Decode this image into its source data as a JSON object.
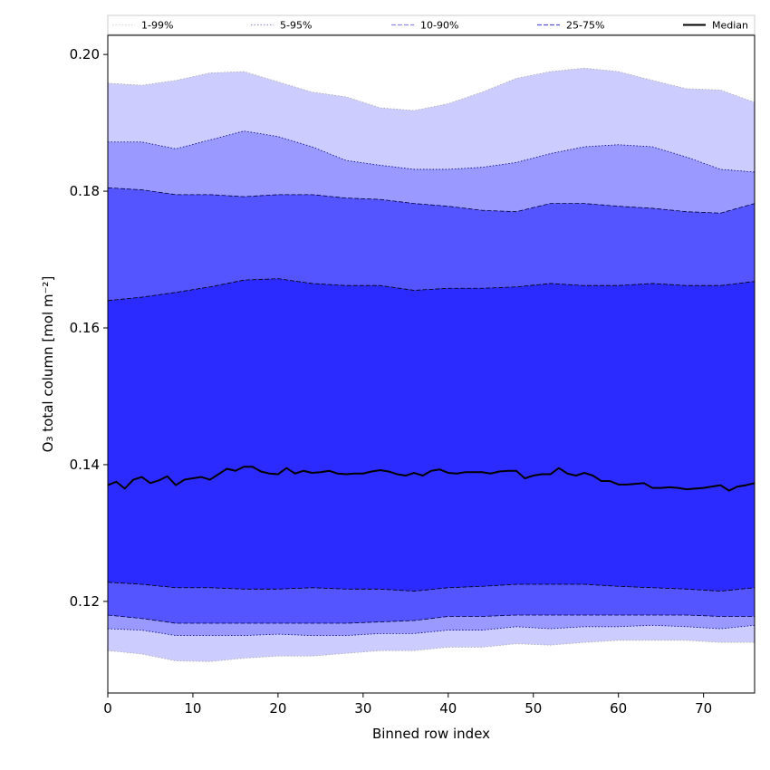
{
  "chart_data": {
    "type": "area",
    "title": "",
    "xlabel": "Binned row index",
    "ylabel": "O₃ total column [mol m⁻²]",
    "xlim": [
      0,
      76
    ],
    "ylim": [
      0.1066,
      0.2028
    ],
    "xticks": [
      0,
      10,
      20,
      30,
      40,
      50,
      60,
      70
    ],
    "yticks": [
      0.12,
      0.14,
      0.16,
      0.18,
      0.2
    ],
    "ytick_labels": [
      "0.12",
      "0.14",
      "0.16",
      "0.18",
      "0.20"
    ],
    "grid": false,
    "legend_position": "top",
    "x": [
      0,
      4,
      8,
      12,
      16,
      20,
      24,
      28,
      32,
      36,
      40,
      44,
      48,
      52,
      56,
      60,
      64,
      68,
      72,
      76
    ],
    "bands": [
      {
        "name": "1-99%",
        "fill": "#ccccff",
        "line_style": "dotted",
        "line_color": "#aaaaaa",
        "lower": [
          0.1128,
          0.1123,
          0.1113,
          0.1112,
          0.1117,
          0.112,
          0.112,
          0.1124,
          0.1128,
          0.1128,
          0.1133,
          0.1133,
          0.1138,
          0.1136,
          0.114,
          0.1143,
          0.1143,
          0.1143,
          0.114,
          0.114
        ],
        "upper": [
          0.1958,
          0.1955,
          0.1962,
          0.1973,
          0.1975,
          0.196,
          0.1945,
          0.1938,
          0.1922,
          0.1918,
          0.1928,
          0.1945,
          0.1965,
          0.1975,
          0.198,
          0.1975,
          0.1962,
          0.195,
          0.1948,
          0.193
        ]
      },
      {
        "name": "5-95%",
        "fill": "#9999ff",
        "line_style": "dotted",
        "line_color": "#000080",
        "lower": [
          0.116,
          0.1158,
          0.115,
          0.115,
          0.115,
          0.1152,
          0.115,
          0.115,
          0.1153,
          0.1153,
          0.1158,
          0.1158,
          0.1163,
          0.116,
          0.1163,
          0.1163,
          0.1165,
          0.1163,
          0.116,
          0.1165
        ],
        "upper": [
          0.1872,
          0.1872,
          0.1862,
          0.1875,
          0.1888,
          0.188,
          0.1865,
          0.1845,
          0.1838,
          0.1832,
          0.1832,
          0.1835,
          0.1842,
          0.1855,
          0.1865,
          0.1868,
          0.1865,
          0.185,
          0.1832,
          0.1828
        ]
      },
      {
        "name": "10-90%",
        "fill": "#5555ff",
        "line_style": "dashed",
        "line_color": "#000040",
        "lower": [
          0.118,
          0.1175,
          0.1168,
          0.1168,
          0.1168,
          0.1168,
          0.1168,
          0.1168,
          0.117,
          0.1172,
          0.1178,
          0.1178,
          0.118,
          0.118,
          0.118,
          0.118,
          0.118,
          0.118,
          0.1178,
          0.1178
        ],
        "upper": [
          0.1805,
          0.1802,
          0.1795,
          0.1795,
          0.1792,
          0.1795,
          0.1795,
          0.179,
          0.1788,
          0.1782,
          0.1778,
          0.1772,
          0.177,
          0.1782,
          0.1782,
          0.1778,
          0.1775,
          0.177,
          0.1768,
          0.1782
        ]
      },
      {
        "name": "25-75%",
        "fill": "#2b2bff",
        "line_style": "dashed",
        "line_color": "#000000",
        "lower": [
          0.1228,
          0.1225,
          0.122,
          0.122,
          0.1218,
          0.1218,
          0.122,
          0.1218,
          0.1218,
          0.1215,
          0.122,
          0.1222,
          0.1225,
          0.1225,
          0.1225,
          0.1222,
          0.122,
          0.1218,
          0.1215,
          0.122
        ],
        "upper": [
          0.164,
          0.1645,
          0.1652,
          0.166,
          0.167,
          0.1672,
          0.1665,
          0.1662,
          0.1662,
          0.1655,
          0.1658,
          0.1658,
          0.166,
          0.1665,
          0.1662,
          0.1662,
          0.1665,
          0.1662,
          0.1662,
          0.1668
        ]
      }
    ],
    "series": [
      {
        "name": "Median",
        "color": "#000000",
        "x": [
          0,
          1,
          2,
          3,
          4,
          5,
          6,
          7,
          8,
          9,
          10,
          11,
          12,
          13,
          14,
          15,
          16,
          17,
          18,
          19,
          20,
          21,
          22,
          23,
          24,
          25,
          26,
          27,
          28,
          29,
          30,
          31,
          32,
          33,
          34,
          35,
          36,
          37,
          38,
          39,
          40,
          41,
          42,
          43,
          44,
          45,
          46,
          47,
          48,
          49,
          50,
          51,
          52,
          53,
          54,
          55,
          56,
          57,
          58,
          59,
          60,
          61,
          62,
          63,
          64,
          65,
          66,
          67,
          68,
          69,
          70,
          71,
          72,
          73,
          74,
          75,
          76
        ],
        "values": [
          0.137,
          0.1375,
          0.1365,
          0.1378,
          0.1382,
          0.1373,
          0.1377,
          0.1383,
          0.137,
          0.1378,
          0.138,
          0.1382,
          0.1378,
          0.1386,
          0.1394,
          0.1391,
          0.1397,
          0.1397,
          0.139,
          0.1387,
          0.1386,
          0.1395,
          0.1387,
          0.1391,
          0.1388,
          0.1389,
          0.1391,
          0.1387,
          0.1386,
          0.1387,
          0.1387,
          0.139,
          0.1392,
          0.139,
          0.1386,
          0.1384,
          0.1388,
          0.1384,
          0.1391,
          0.1393,
          0.1388,
          0.1387,
          0.1389,
          0.1389,
          0.1389,
          0.1387,
          0.139,
          0.1391,
          0.1391,
          0.138,
          0.1384,
          0.1386,
          0.1386,
          0.1395,
          0.1387,
          0.1384,
          0.1388,
          0.1384,
          0.1376,
          0.1376,
          0.1371,
          0.1371,
          0.1372,
          0.1373,
          0.1366,
          0.1366,
          0.1367,
          0.1366,
          0.1364,
          0.1365,
          0.1366,
          0.1368,
          0.137,
          0.1362,
          0.1368,
          0.137,
          0.1373
        ]
      }
    ],
    "legend": [
      {
        "name": "1-99%",
        "color": "#dddddd",
        "style": "dotted"
      },
      {
        "name": "5-95%",
        "color": "#9999cc",
        "style": "dotted"
      },
      {
        "name": "10-90%",
        "color": "#8888ee",
        "style": "dashed"
      },
      {
        "name": "25-75%",
        "color": "#5555dd",
        "style": "dashed"
      },
      {
        "name": "Median",
        "color": "#000000",
        "style": "solid"
      }
    ]
  }
}
